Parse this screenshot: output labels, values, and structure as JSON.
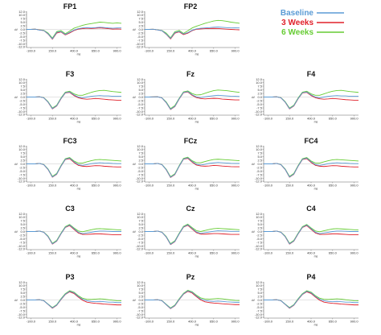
{
  "chart_data": {
    "type": "line",
    "x_unit": "ms",
    "y_unit": "uV",
    "xticks_top_row": [
      "-100.0",
      "150.0",
      "400.0",
      "650.0",
      "900.0"
    ],
    "xticks": [
      "-100.0",
      "150.0",
      "400.0",
      "650.0",
      "900.0"
    ],
    "yticks": [
      "12.0",
      "10.0",
      "7.5",
      "5.0",
      "2.5",
      "0.0",
      "-2.5",
      "-5.0",
      "-7.5",
      "-10.0",
      "-12.0"
    ],
    "xlim": [
      -150,
      950
    ],
    "ylim": [
      -12.5,
      12.5
    ],
    "x": [
      -150,
      -100,
      -50,
      0,
      50,
      100,
      150,
      200,
      250,
      300,
      350,
      400,
      450,
      500,
      550,
      600,
      650,
      700,
      750,
      800,
      850,
      900,
      950
    ],
    "legend": {
      "position": "top-right"
    },
    "series": [
      {
        "name": "Baseline",
        "color": "#5b9bd5"
      },
      {
        "name": "3 Weeks",
        "color": "#e0202a"
      },
      {
        "name": "6 Weeks",
        "color": "#66cc33"
      }
    ],
    "panels": [
      {
        "title": "FP1",
        "values": [
          [
            0.0,
            0.0,
            0.2,
            -0.5,
            -0.8,
            -3.0,
            -6.5,
            -2.0,
            -1.5,
            -3.5,
            -2.0,
            -0.5,
            0.5,
            1.0,
            1.2,
            1.0,
            1.2,
            1.5,
            1.3,
            1.0,
            0.8,
            1.0,
            1.0
          ],
          [
            0.0,
            0.0,
            0.2,
            -0.4,
            -0.8,
            -3.2,
            -6.8,
            -2.5,
            -1.8,
            -3.8,
            -2.5,
            -0.8,
            0.2,
            0.5,
            0.8,
            0.6,
            0.8,
            1.0,
            0.8,
            0.5,
            0.2,
            0.3,
            0.2
          ],
          [
            0.0,
            0.0,
            0.2,
            -0.3,
            -0.6,
            -2.5,
            -6.0,
            -1.5,
            -0.8,
            -3.0,
            -1.2,
            0.8,
            1.8,
            2.8,
            3.5,
            4.0,
            4.5,
            5.0,
            4.8,
            4.5,
            4.2,
            4.5,
            4.2
          ]
        ]
      },
      {
        "title": "FP2",
        "values": [
          [
            0.0,
            0.0,
            0.1,
            -0.4,
            -0.9,
            -3.2,
            -6.2,
            -2.2,
            -1.4,
            -3.2,
            -2.2,
            -0.6,
            0.4,
            0.8,
            1.0,
            1.2,
            1.5,
            1.6,
            1.4,
            1.2,
            1.0,
            1.1,
            1.0
          ],
          [
            0.0,
            0.0,
            0.1,
            -0.4,
            -0.9,
            -3.4,
            -6.6,
            -2.6,
            -1.7,
            -3.6,
            -2.6,
            -0.9,
            0.1,
            0.3,
            0.5,
            0.6,
            0.7,
            0.6,
            0.4,
            0.2,
            0.0,
            -0.2,
            -0.3
          ],
          [
            0.0,
            0.0,
            0.1,
            -0.3,
            -0.7,
            -2.6,
            -5.8,
            -1.6,
            -0.7,
            -2.8,
            -1.0,
            1.0,
            2.2,
            3.2,
            4.2,
            5.0,
            5.8,
            6.2,
            6.0,
            5.6,
            5.0,
            4.6,
            4.2
          ]
        ]
      },
      {
        "title": "F3",
        "values": [
          [
            0.0,
            0.0,
            0.0,
            0.2,
            -0.5,
            -3.5,
            -8.0,
            -6.0,
            -1.0,
            3.0,
            3.5,
            1.5,
            0.0,
            -0.5,
            0.0,
            0.5,
            0.8,
            1.0,
            0.8,
            0.8,
            0.5,
            0.5,
            0.5
          ],
          [
            0.0,
            0.0,
            0.0,
            0.2,
            -0.5,
            -3.6,
            -8.2,
            -6.2,
            -1.2,
            2.8,
            3.2,
            1.0,
            -0.5,
            -1.2,
            -1.5,
            -1.3,
            -1.0,
            -1.2,
            -1.5,
            -1.8,
            -2.0,
            -2.2,
            -2.2
          ],
          [
            0.0,
            0.0,
            0.0,
            0.2,
            -0.4,
            -3.2,
            -7.6,
            -5.6,
            -0.6,
            3.4,
            4.0,
            2.2,
            1.2,
            1.2,
            2.2,
            3.2,
            4.0,
            4.5,
            4.6,
            4.2,
            3.8,
            3.5,
            3.2
          ]
        ]
      },
      {
        "title": "Fz",
        "values": [
          [
            0.0,
            0.0,
            0.1,
            0.2,
            -0.6,
            -3.8,
            -8.4,
            -6.4,
            -1.2,
            3.2,
            3.8,
            1.6,
            0.1,
            -0.4,
            0.2,
            0.6,
            0.9,
            1.2,
            1.0,
            0.8,
            0.6,
            0.5,
            0.4
          ],
          [
            0.0,
            0.0,
            0.1,
            0.2,
            -0.6,
            -3.9,
            -8.6,
            -6.6,
            -1.4,
            3.0,
            3.5,
            1.2,
            -0.4,
            -1.0,
            -1.3,
            -1.1,
            -0.9,
            -1.0,
            -1.4,
            -1.6,
            -1.8,
            -2.0,
            -2.0
          ],
          [
            0.0,
            0.0,
            0.1,
            0.2,
            -0.5,
            -3.4,
            -8.0,
            -5.8,
            -0.8,
            3.6,
            4.2,
            2.4,
            1.4,
            1.6,
            2.6,
            3.6,
            4.4,
            4.8,
            4.6,
            4.4,
            4.0,
            3.6,
            3.2
          ]
        ]
      },
      {
        "title": "F4",
        "values": [
          [
            0.0,
            0.0,
            0.0,
            0.2,
            -0.5,
            -3.5,
            -8.0,
            -6.0,
            -1.0,
            3.0,
            3.5,
            1.5,
            0.0,
            -0.5,
            0.0,
            0.5,
            0.8,
            1.0,
            0.8,
            0.8,
            0.5,
            0.5,
            0.5
          ],
          [
            0.0,
            0.0,
            0.0,
            0.2,
            -0.5,
            -3.6,
            -8.2,
            -6.2,
            -1.2,
            2.8,
            3.2,
            1.0,
            -0.5,
            -1.2,
            -1.5,
            -1.3,
            -1.0,
            -1.2,
            -1.5,
            -1.8,
            -2.0,
            -2.2,
            -2.2
          ],
          [
            0.0,
            0.0,
            0.0,
            0.2,
            -0.4,
            -3.2,
            -7.6,
            -5.6,
            -0.6,
            3.4,
            4.0,
            2.2,
            1.2,
            1.2,
            2.2,
            3.2,
            4.0,
            4.5,
            4.6,
            4.2,
            3.8,
            3.5,
            3.2
          ]
        ]
      },
      {
        "title": "FC3",
        "values": [
          [
            0.0,
            0.0,
            0.0,
            0.3,
            -0.5,
            -3.8,
            -9.0,
            -7.0,
            -1.5,
            3.2,
            4.0,
            1.5,
            -0.5,
            -1.0,
            -0.5,
            0.2,
            0.5,
            0.8,
            0.6,
            0.5,
            0.3,
            0.2,
            0.2
          ],
          [
            0.0,
            0.0,
            0.0,
            0.3,
            -0.5,
            -3.9,
            -9.2,
            -7.2,
            -1.6,
            3.0,
            3.6,
            1.0,
            -1.0,
            -1.6,
            -1.8,
            -1.5,
            -1.2,
            -1.3,
            -1.6,
            -1.8,
            -2.0,
            -2.1,
            -2.1
          ],
          [
            0.0,
            0.0,
            0.0,
            0.3,
            -0.4,
            -3.5,
            -8.6,
            -6.6,
            -1.1,
            3.6,
            4.4,
            2.0,
            0.6,
            0.6,
            1.4,
            2.2,
            2.8,
            3.0,
            2.8,
            2.6,
            2.4,
            2.2,
            2.0
          ]
        ]
      },
      {
        "title": "FCz",
        "values": [
          [
            0.0,
            0.0,
            0.0,
            0.3,
            -0.5,
            -4.0,
            -9.2,
            -7.2,
            -1.6,
            3.4,
            4.2,
            1.7,
            -0.3,
            -0.8,
            -0.3,
            0.4,
            0.7,
            1.0,
            0.8,
            0.6,
            0.4,
            0.3,
            0.3
          ],
          [
            0.0,
            0.0,
            0.0,
            0.3,
            -0.5,
            -4.1,
            -9.4,
            -7.4,
            -1.7,
            3.2,
            3.8,
            1.2,
            -0.8,
            -1.4,
            -1.6,
            -1.4,
            -1.1,
            -1.2,
            -1.5,
            -1.7,
            -1.9,
            -2.0,
            -2.0
          ],
          [
            0.0,
            0.0,
            0.0,
            0.3,
            -0.4,
            -3.7,
            -8.8,
            -6.8,
            -1.2,
            3.8,
            4.6,
            2.2,
            0.8,
            0.8,
            1.6,
            2.4,
            3.0,
            3.2,
            3.0,
            2.8,
            2.6,
            2.4,
            2.2
          ]
        ]
      },
      {
        "title": "FC4",
        "values": [
          [
            0.0,
            0.0,
            0.0,
            0.3,
            -0.5,
            -3.8,
            -9.0,
            -7.0,
            -1.5,
            3.2,
            4.0,
            1.5,
            -0.5,
            -1.0,
            -0.5,
            0.2,
            0.5,
            0.8,
            0.6,
            0.5,
            0.3,
            0.2,
            0.2
          ],
          [
            0.0,
            0.0,
            0.0,
            0.3,
            -0.5,
            -3.9,
            -9.2,
            -7.2,
            -1.6,
            3.0,
            3.6,
            1.0,
            -1.0,
            -1.6,
            -1.8,
            -1.5,
            -1.2,
            -1.3,
            -1.6,
            -1.8,
            -2.0,
            -2.1,
            -2.1
          ],
          [
            0.0,
            0.0,
            0.0,
            0.3,
            -0.4,
            -3.5,
            -8.6,
            -6.6,
            -1.1,
            3.6,
            4.4,
            2.0,
            0.6,
            0.6,
            1.4,
            2.2,
            2.8,
            3.0,
            2.8,
            2.6,
            2.4,
            2.2,
            2.0
          ]
        ]
      },
      {
        "title": "C3",
        "values": [
          [
            0.0,
            0.0,
            0.0,
            0.3,
            -0.5,
            -3.5,
            -8.5,
            -6.5,
            -1.5,
            3.0,
            4.5,
            2.0,
            -0.5,
            -1.5,
            -1.0,
            -0.5,
            0.0,
            0.3,
            0.3,
            0.2,
            0.0,
            0.0,
            0.0
          ],
          [
            0.0,
            0.0,
            0.0,
            0.3,
            -0.5,
            -3.6,
            -8.7,
            -6.7,
            -1.6,
            2.8,
            4.1,
            1.5,
            -1.0,
            -2.0,
            -2.0,
            -1.8,
            -1.6,
            -1.6,
            -1.8,
            -2.0,
            -2.2,
            -2.2,
            -2.2
          ],
          [
            0.0,
            0.0,
            0.0,
            0.3,
            -0.4,
            -3.2,
            -8.1,
            -6.1,
            -1.1,
            3.4,
            4.9,
            2.5,
            0.4,
            -0.2,
            0.5,
            1.2,
            1.8,
            2.0,
            1.8,
            1.6,
            1.4,
            1.2,
            1.0
          ]
        ]
      },
      {
        "title": "Cz",
        "values": [
          [
            0.0,
            0.0,
            0.0,
            0.3,
            -0.5,
            -3.7,
            -8.8,
            -6.8,
            -1.6,
            3.2,
            4.7,
            2.2,
            -0.3,
            -1.3,
            -0.8,
            -0.3,
            0.2,
            0.5,
            0.4,
            0.3,
            0.1,
            0.1,
            0.1
          ],
          [
            0.0,
            0.0,
            0.0,
            0.3,
            -0.5,
            -3.8,
            -9.0,
            -7.0,
            -1.7,
            3.0,
            4.3,
            1.7,
            -0.8,
            -1.8,
            -1.8,
            -1.6,
            -1.4,
            -1.4,
            -1.6,
            -1.8,
            -2.0,
            -2.0,
            -2.0
          ],
          [
            0.0,
            0.0,
            0.0,
            0.3,
            -0.4,
            -3.4,
            -8.4,
            -6.4,
            -1.2,
            3.6,
            5.1,
            2.7,
            0.6,
            0.0,
            0.7,
            1.4,
            2.0,
            2.2,
            2.0,
            1.8,
            1.6,
            1.4,
            1.2
          ]
        ]
      },
      {
        "title": "C4",
        "values": [
          [
            0.0,
            0.0,
            0.0,
            0.3,
            -0.5,
            -3.5,
            -8.5,
            -6.5,
            -1.5,
            3.0,
            4.5,
            2.0,
            -0.5,
            -1.5,
            -1.0,
            -0.5,
            0.0,
            0.3,
            0.3,
            0.2,
            0.0,
            0.0,
            0.0
          ],
          [
            0.0,
            0.0,
            0.0,
            0.3,
            -0.5,
            -3.6,
            -8.7,
            -6.7,
            -1.6,
            2.8,
            4.1,
            1.5,
            -1.0,
            -2.0,
            -2.0,
            -1.8,
            -1.6,
            -1.6,
            -1.8,
            -2.0,
            -2.2,
            -2.2,
            -2.2
          ],
          [
            0.0,
            0.0,
            0.0,
            0.3,
            -0.4,
            -3.2,
            -8.1,
            -6.1,
            -1.1,
            3.4,
            4.9,
            2.5,
            0.4,
            -0.2,
            0.5,
            1.2,
            1.8,
            2.0,
            1.8,
            1.6,
            1.4,
            1.2,
            1.0
          ]
        ]
      },
      {
        "title": "P3",
        "values": [
          [
            0.0,
            0.0,
            0.0,
            0.2,
            -0.5,
            -3.0,
            -5.5,
            -3.5,
            0.5,
            4.0,
            6.0,
            5.0,
            2.5,
            0.5,
            -0.5,
            -1.0,
            -1.2,
            -1.0,
            -1.2,
            -1.5,
            -1.5,
            -1.8,
            -1.8
          ],
          [
            0.0,
            0.0,
            0.0,
            0.2,
            -0.5,
            -3.1,
            -5.7,
            -3.7,
            0.3,
            3.8,
            5.6,
            4.5,
            2.0,
            -0.2,
            -1.5,
            -2.0,
            -2.3,
            -2.5,
            -2.8,
            -3.0,
            -3.2,
            -3.4,
            -3.4
          ],
          [
            0.0,
            0.0,
            0.0,
            0.2,
            -0.4,
            -2.8,
            -5.2,
            -3.2,
            0.9,
            4.4,
            6.4,
            5.4,
            3.0,
            1.2,
            0.5,
            0.4,
            0.6,
            0.8,
            0.6,
            0.2,
            -0.2,
            -0.5,
            -0.6
          ]
        ]
      },
      {
        "title": "Pz",
        "values": [
          [
            0.0,
            0.0,
            0.0,
            0.2,
            -0.5,
            -3.2,
            -5.8,
            -3.8,
            0.4,
            4.2,
            6.3,
            5.3,
            2.8,
            0.7,
            -0.3,
            -0.8,
            -1.0,
            -0.8,
            -1.0,
            -1.3,
            -1.4,
            -1.6,
            -1.6
          ],
          [
            0.0,
            0.0,
            0.0,
            0.2,
            -0.5,
            -3.3,
            -6.0,
            -4.0,
            0.2,
            4.0,
            5.9,
            4.8,
            2.3,
            0.0,
            -1.3,
            -1.8,
            -2.1,
            -2.3,
            -2.6,
            -2.8,
            -3.0,
            -3.2,
            -3.2
          ],
          [
            0.0,
            0.0,
            0.0,
            0.2,
            -0.4,
            -3.0,
            -5.5,
            -3.5,
            0.8,
            4.6,
            6.7,
            5.7,
            3.3,
            1.4,
            0.7,
            0.6,
            0.8,
            1.0,
            0.8,
            0.4,
            0.0,
            -0.3,
            -0.4
          ]
        ]
      },
      {
        "title": "P4",
        "values": [
          [
            0.0,
            0.0,
            0.0,
            0.2,
            -0.5,
            -3.0,
            -5.5,
            -3.5,
            0.5,
            4.0,
            6.0,
            5.0,
            2.5,
            0.5,
            -0.5,
            -1.0,
            -1.2,
            -1.0,
            -1.2,
            -1.5,
            -1.5,
            -1.8,
            -1.8
          ],
          [
            0.0,
            0.0,
            0.0,
            0.2,
            -0.5,
            -3.1,
            -5.7,
            -3.7,
            0.3,
            3.8,
            5.6,
            4.5,
            2.0,
            -0.2,
            -1.5,
            -2.0,
            -2.3,
            -2.5,
            -2.8,
            -3.0,
            -3.2,
            -3.4,
            -3.4
          ],
          [
            0.0,
            0.0,
            0.0,
            0.2,
            -0.4,
            -2.8,
            -5.2,
            -3.2,
            0.9,
            4.4,
            6.4,
            5.4,
            3.0,
            1.2,
            0.5,
            0.4,
            0.6,
            0.8,
            0.6,
            0.2,
            -0.2,
            -0.5,
            -0.6
          ]
        ]
      }
    ]
  }
}
